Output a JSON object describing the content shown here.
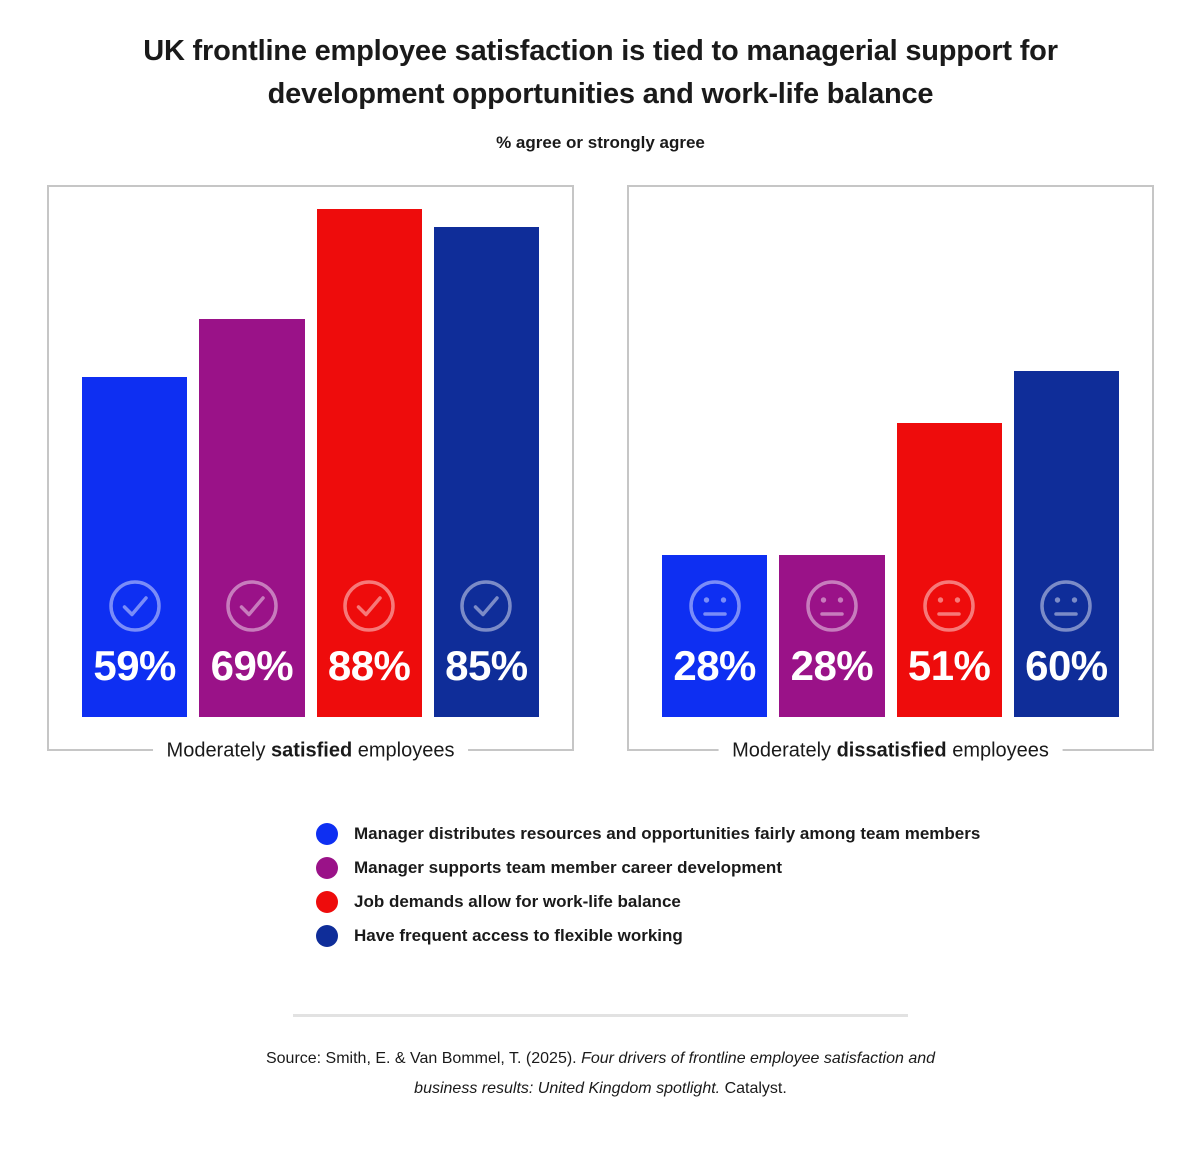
{
  "header": {
    "title_lines": [
      "UK frontline employee satisfaction is tied to managerial support for",
      "development opportunities and work-life balance"
    ],
    "subtitle": "% agree or strongly agree"
  },
  "chart_data": {
    "type": "bar",
    "unit": "percent",
    "ylim": [
      0,
      100
    ],
    "grid": false,
    "legend_position": "bottom",
    "categories": [
      "Manager distributes resources and opportunities fairly among team members",
      "Manager supports team member career development",
      "Job demands allow for work-life balance",
      "Have frequent access to flexible working"
    ],
    "category_colors": [
      "#0E2FF2",
      "#9A1288",
      "#EE0C0C",
      "#0F2D99"
    ],
    "series": [
      {
        "name": "Moderately satisfied employees",
        "icon": "check-circle",
        "values": [
          59,
          69,
          88,
          85
        ],
        "labels": [
          "59%",
          "69%",
          "88%",
          "85%"
        ]
      },
      {
        "name": "Moderately dissatisfied employees",
        "icon": "neutral-face",
        "values": [
          28,
          28,
          51,
          60
        ],
        "labels": [
          "28%",
          "28%",
          "51%",
          "60%"
        ]
      }
    ]
  },
  "panel_captions": [
    {
      "prefix": "Moderately",
      "bold": "satisfied",
      "suffix": "employees"
    },
    {
      "prefix": "Moderately",
      "bold": "dissatisfied",
      "suffix": "employees"
    }
  ],
  "legend": {
    "items": [
      {
        "label": "Manager distributes resources and opportunities fairly among team members",
        "color": "#0E2FF2"
      },
      {
        "label": "Manager supports team member career development",
        "color": "#9A1288"
      },
      {
        "label": "Job demands allow for work-life balance",
        "color": "#EE0C0C"
      },
      {
        "label": "Have frequent access to flexible working",
        "color": "#0F2D99"
      }
    ]
  },
  "source": {
    "prefix": "Source: Smith, E. & Van Bommel, T. (2025).",
    "italic_line1": "Four drivers of frontline employee satisfaction and",
    "italic_line2": "business results: United Kingdom spotlight.",
    "suffix": "Catalyst."
  }
}
